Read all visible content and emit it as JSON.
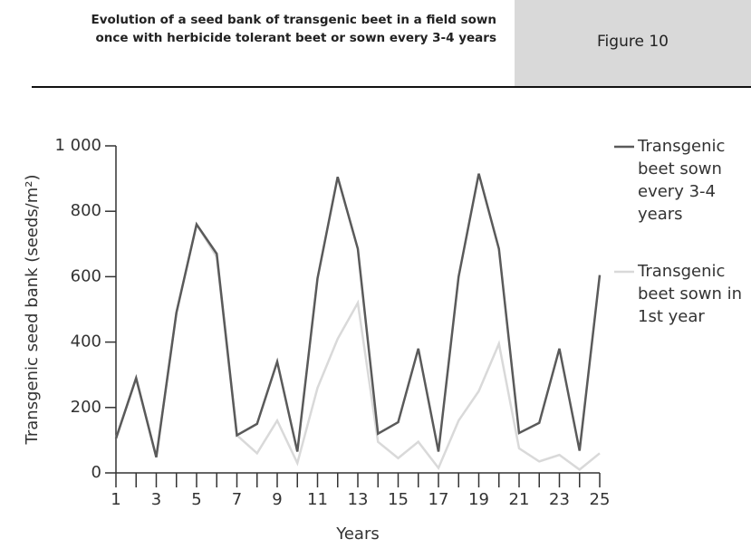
{
  "header": {
    "title": "Evolution of a seed bank of transgenic beet in a field sown once with herbicide tolerant beet or sown every 3-4 years",
    "figure": "Figure 10"
  },
  "chart_data": {
    "type": "line",
    "x": [
      1,
      2,
      3,
      4,
      5,
      6,
      7,
      8,
      9,
      10,
      11,
      12,
      13,
      14,
      15,
      16,
      17,
      18,
      19,
      20,
      21,
      22,
      23,
      24,
      25
    ],
    "xlim": [
      1,
      25
    ],
    "xticks": [
      1,
      3,
      5,
      7,
      9,
      11,
      13,
      15,
      17,
      19,
      21,
      23,
      25
    ],
    "ylim": [
      0,
      1000
    ],
    "yticks": [
      0,
      200,
      400,
      600,
      800,
      {
        "value": 1000,
        "label": "1 000"
      }
    ],
    "xlabel": "Years",
    "ylabel": "Transgenic seed bank (seeds/m²)",
    "series": [
      {
        "name": "Transgenic beet sown every 3-4 years",
        "color": "#5a5a5a",
        "values": [
          105,
          290,
          48,
          490,
          760,
          670,
          115,
          150,
          340,
          65,
          595,
          905,
          685,
          120,
          155,
          380,
          65,
          600,
          915,
          685,
          122,
          153,
          380,
          68,
          605
        ]
      },
      {
        "name": "Transgenic beet sown in 1st year",
        "color": "#d9d9d9",
        "values": [
          105,
          290,
          48,
          490,
          760,
          660,
          115,
          60,
          160,
          30,
          260,
          410,
          520,
          95,
          45,
          95,
          15,
          160,
          250,
          395,
          75,
          35,
          55,
          10,
          60
        ]
      }
    ]
  }
}
